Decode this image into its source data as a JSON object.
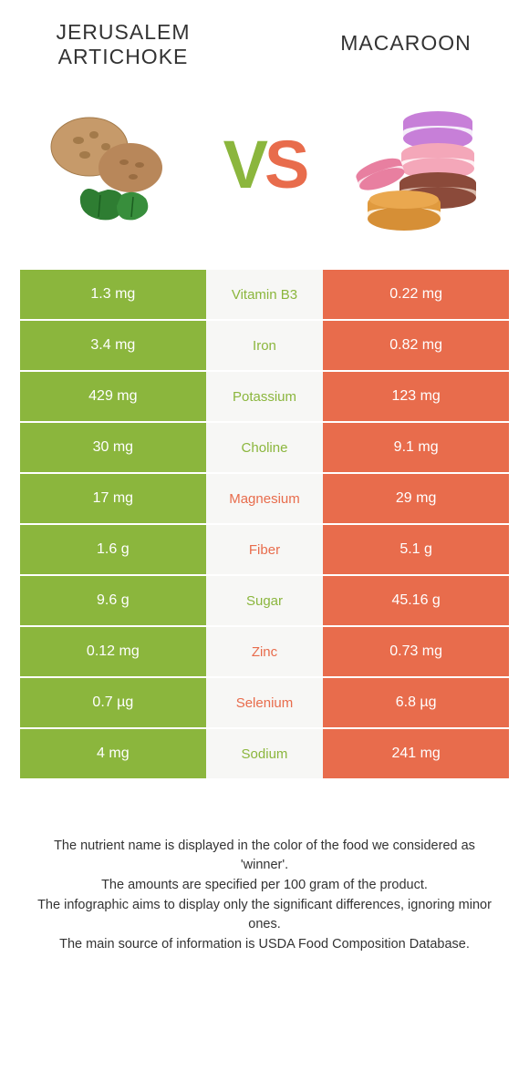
{
  "leftFood": {
    "name": "JERUSALEM ARTICHOKE",
    "color": "#8bb63d"
  },
  "rightFood": {
    "name": "MACAROON",
    "color": "#e86c4c"
  },
  "vs": {
    "v": "V",
    "s": "S"
  },
  "tableBackground": "#f7f7f5",
  "rows": [
    {
      "left": "1.3 mg",
      "label": "Vitamin B3",
      "right": "0.22 mg",
      "winner": "left"
    },
    {
      "left": "3.4 mg",
      "label": "Iron",
      "right": "0.82 mg",
      "winner": "left"
    },
    {
      "left": "429 mg",
      "label": "Potassium",
      "right": "123 mg",
      "winner": "left"
    },
    {
      "left": "30 mg",
      "label": "Choline",
      "right": "9.1 mg",
      "winner": "left"
    },
    {
      "left": "17 mg",
      "label": "Magnesium",
      "right": "29 mg",
      "winner": "right"
    },
    {
      "left": "1.6 g",
      "label": "Fiber",
      "right": "5.1 g",
      "winner": "right"
    },
    {
      "left": "9.6 g",
      "label": "Sugar",
      "right": "45.16 g",
      "winner": "left"
    },
    {
      "left": "0.12 mg",
      "label": "Zinc",
      "right": "0.73 mg",
      "winner": "right"
    },
    {
      "left": "0.7 µg",
      "label": "Selenium",
      "right": "6.8 µg",
      "winner": "right"
    },
    {
      "left": "4 mg",
      "label": "Sodium",
      "right": "241 mg",
      "winner": "left"
    }
  ],
  "footnotes": [
    "The nutrient name is displayed in the color of the food we considered as 'winner'.",
    "The amounts are specified per 100 gram of the product.",
    "The infographic aims to display only the significant differences, ignoring minor ones.",
    "The main source of information is USDA Food Composition Database."
  ]
}
